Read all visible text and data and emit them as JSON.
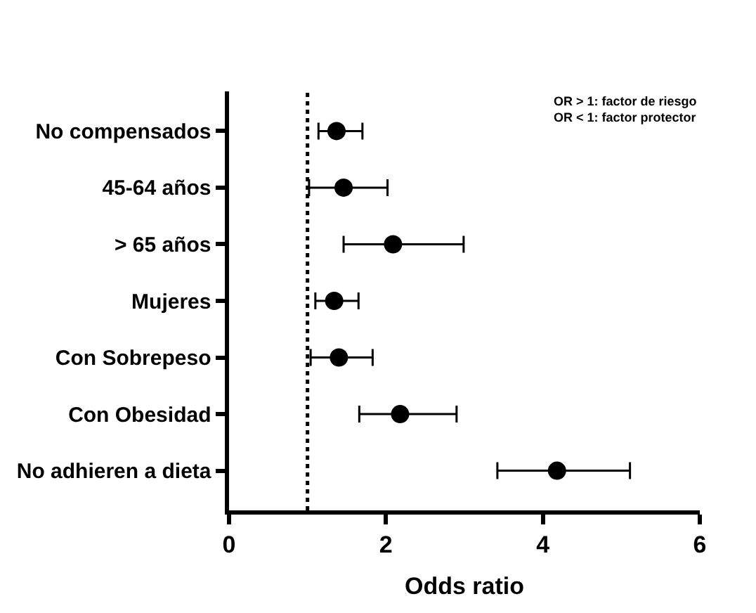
{
  "chart_data": {
    "type": "scatter",
    "orientation": "horizontal",
    "xlabel": "Odds ratio",
    "categories": [
      "No compensados",
      "45-64 años",
      "> 65 años",
      "Mujeres",
      "Con Sobrepeso",
      "Con Obesidad",
      "No adhieren a dieta"
    ],
    "series": [
      {
        "color": "#000000",
        "values": [
          1.37,
          1.46,
          2.09,
          1.34,
          1.4,
          2.18,
          4.18
        ],
        "errors": [
          [
            1.14,
            1.7
          ],
          [
            1.02,
            2.02
          ],
          [
            1.46,
            2.99
          ],
          [
            1.1,
            1.65
          ],
          [
            1.04,
            1.83
          ],
          [
            1.66,
            2.9
          ],
          [
            3.42,
            5.11
          ]
        ]
      }
    ],
    "xlim": [
      0,
      6
    ],
    "xticks": [
      0,
      2,
      4,
      6
    ],
    "ref_lines": [
      {
        "axis": "x",
        "value": 1,
        "line_style": "dotted",
        "color": "#000000"
      }
    ],
    "annotations": [
      "OR > 1: factor de riesgo\nOR < 1: factor protector"
    ],
    "marker": "circle"
  }
}
